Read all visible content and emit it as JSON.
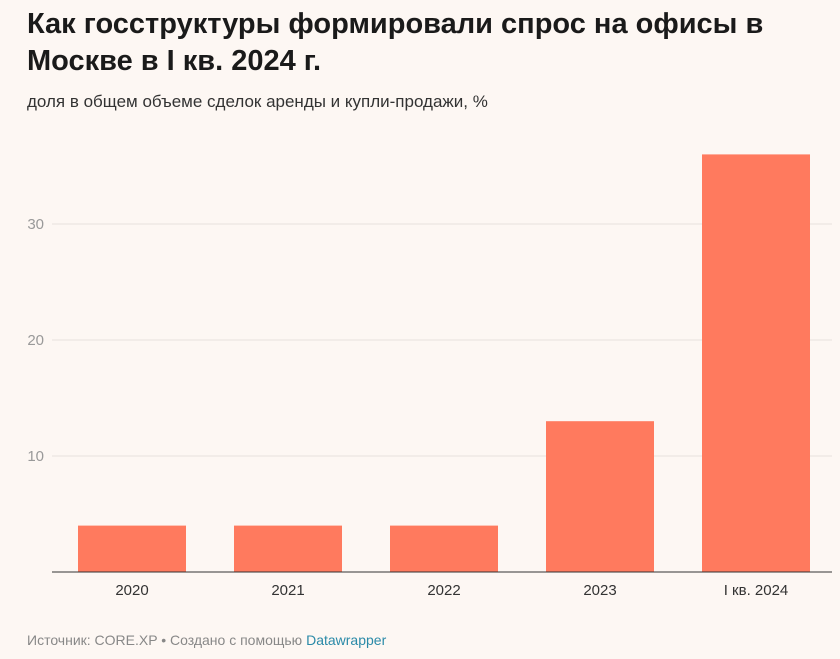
{
  "title": "Как госструктуры формировали спрос на офисы в Москве в I кв. 2024 г.",
  "subtitle": "доля в общем объеме сделок аренды и купли-продажи, %",
  "footer": {
    "source": "Источник: CORE.XP • Создано с помощью ",
    "link": "Datawrapper"
  },
  "colors": {
    "bar": "#ff7a5e",
    "background": "#fdf7f3",
    "link": "#2a8aa8"
  },
  "chart_data": {
    "type": "bar",
    "categories": [
      "2020",
      "2021",
      "2022",
      "2023",
      "I кв. 2024"
    ],
    "values": [
      4,
      4,
      4,
      13,
      36
    ],
    "ylim": [
      0,
      37
    ],
    "yticks": [
      10,
      20,
      30
    ],
    "grid": true,
    "xlabel": "",
    "ylabel": ""
  }
}
